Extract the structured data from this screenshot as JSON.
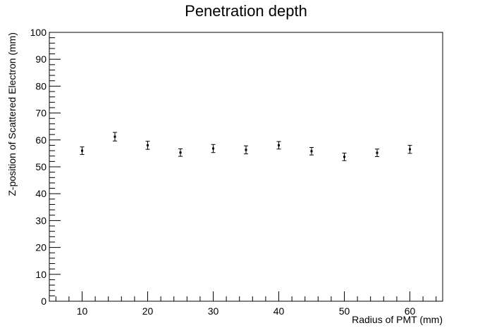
{
  "chart_data": {
    "type": "scatter",
    "title": "Penetration depth",
    "xlabel": "Radius of PMT (mm)",
    "ylabel": "Z-position of Scattered Electron (mm)",
    "xlim": [
      5,
      65
    ],
    "ylim": [
      0,
      100
    ],
    "x_ticks": [
      10,
      20,
      30,
      40,
      50,
      60
    ],
    "y_ticks": [
      0,
      10,
      20,
      30,
      40,
      50,
      60,
      70,
      80,
      90,
      100
    ],
    "x_tick_labels": [
      "10",
      "20",
      "30",
      "40",
      "50",
      "60"
    ],
    "y_tick_labels": [
      "0",
      "10",
      "20",
      "30",
      "40",
      "50",
      "60",
      "70",
      "80",
      "90",
      "100"
    ],
    "grid": false,
    "marker_color": "#000000",
    "points": [
      {
        "x": 10,
        "y": 56.0,
        "err": 1.4
      },
      {
        "x": 15,
        "y": 61.2,
        "err": 1.6
      },
      {
        "x": 20,
        "y": 58.0,
        "err": 1.5
      },
      {
        "x": 25,
        "y": 55.3,
        "err": 1.4
      },
      {
        "x": 30,
        "y": 56.8,
        "err": 1.5
      },
      {
        "x": 35,
        "y": 56.3,
        "err": 1.5
      },
      {
        "x": 40,
        "y": 58.0,
        "err": 1.4
      },
      {
        "x": 45,
        "y": 55.8,
        "err": 1.4
      },
      {
        "x": 50,
        "y": 53.7,
        "err": 1.4
      },
      {
        "x": 55,
        "y": 55.2,
        "err": 1.4
      },
      {
        "x": 60,
        "y": 56.5,
        "err": 1.5
      }
    ]
  }
}
